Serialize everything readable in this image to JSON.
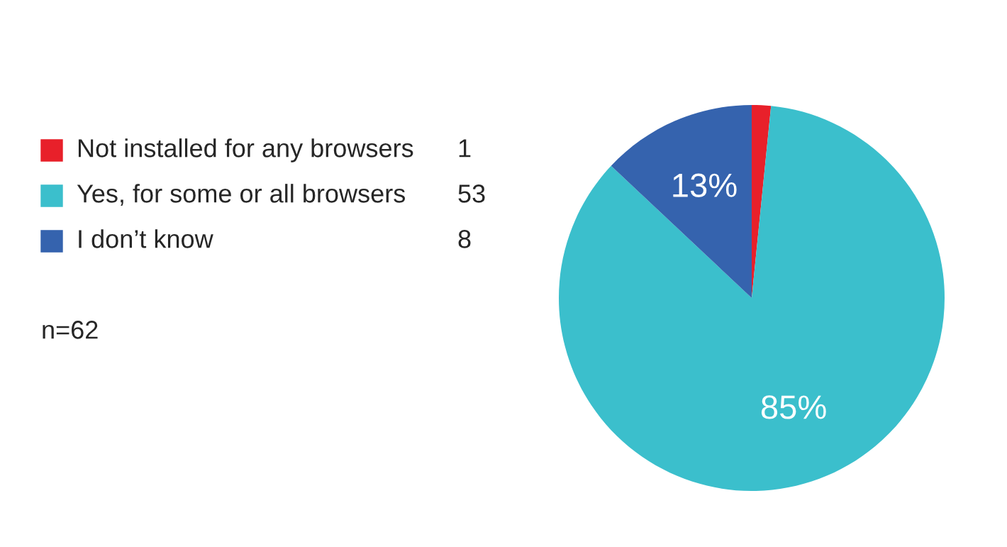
{
  "chart_data": {
    "type": "pie",
    "categories": [
      "Not installed for any browsers",
      "Yes, for some or all browsers",
      "I don’t know"
    ],
    "values": [
      1.6,
      85.4,
      13.0
    ],
    "colors": [
      "#e8202a",
      "#3bbfcc",
      "#3563ae"
    ],
    "value_labels": [
      null,
      "85%",
      "13%"
    ],
    "legend": "left",
    "annotations": [
      "1",
      "53",
      "8",
      "n=62"
    ]
  }
}
